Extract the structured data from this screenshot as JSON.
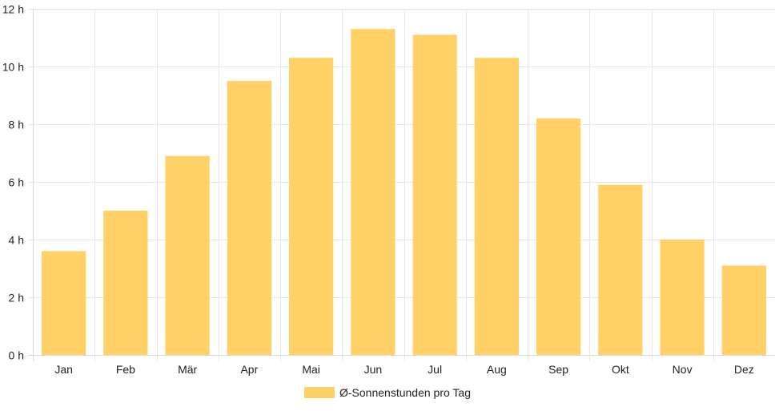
{
  "chart_data": {
    "type": "bar",
    "categories": [
      "Jan",
      "Feb",
      "Mär",
      "Apr",
      "Mai",
      "Jun",
      "Jul",
      "Aug",
      "Sep",
      "Okt",
      "Nov",
      "Dez"
    ],
    "series": [
      {
        "name": "Ø-Sonnenstunden pro Tag",
        "values": [
          3.6,
          5.0,
          6.9,
          9.5,
          10.3,
          11.3,
          11.1,
          10.3,
          8.2,
          5.9,
          4.0,
          3.1
        ]
      }
    ],
    "yticks": [
      {
        "value": 0,
        "label": "0 h"
      },
      {
        "value": 2,
        "label": "2 h"
      },
      {
        "value": 4,
        "label": "4 h"
      },
      {
        "value": 6,
        "label": "6 h"
      },
      {
        "value": 8,
        "label": "8 h"
      },
      {
        "value": 10,
        "label": "10 h"
      },
      {
        "value": 12,
        "label": "12 h"
      }
    ],
    "ylim": [
      0,
      12
    ],
    "grid": true,
    "legend_position": "bottom",
    "colors": {
      "bar": "#ffd166",
      "grid": "#e6e6e6",
      "axis": "#d9d9d9"
    }
  }
}
